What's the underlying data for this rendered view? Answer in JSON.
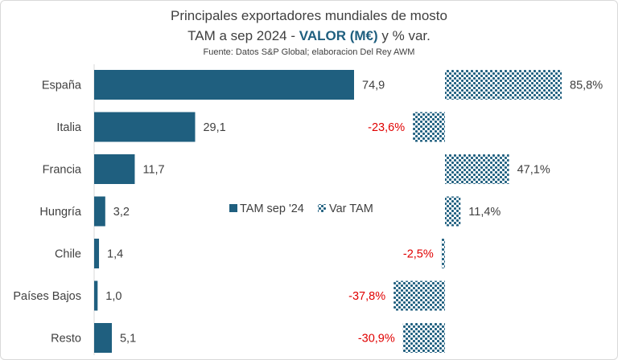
{
  "title": {
    "line1": "Principales exportadores mundiales de mosto",
    "line2_prefix": "TAM a sep 2024 - ",
    "line2_accent": "VALOR (M€)",
    "line2_suffix": " y % var.",
    "source": "Fuente: Datos S&P Global; elaboracion Del Rey AWM"
  },
  "colors": {
    "bar": "#1f5f7f",
    "accent": "#1f5f7f",
    "negative": "#e00000",
    "text": "#404040"
  },
  "chart_data": {
    "type": "bar",
    "orientation": "horizontal",
    "categories": [
      "España",
      "Italia",
      "Francia",
      "Hungría",
      "Chile",
      "Países Bajos",
      "Resto"
    ],
    "series": [
      {
        "name": "TAM sep '24",
        "values": [
          74.9,
          29.1,
          11.7,
          3.2,
          1.4,
          1.0,
          5.1
        ],
        "labels": [
          "74,9",
          "29,1",
          "11,7",
          "3,2",
          "1,4",
          "1,0",
          "5,1"
        ]
      },
      {
        "name": "Var TAM",
        "values": [
          85.8,
          -23.6,
          47.1,
          11.4,
          -2.5,
          -37.8,
          -30.9
        ],
        "labels": [
          "85,8%",
          "-23,6%",
          "47,1%",
          "11,4%",
          "-2,5%",
          "-37,8%",
          "-30,9%"
        ]
      }
    ],
    "legend": [
      "TAM sep '24",
      "Var TAM"
    ],
    "legend_position": "center",
    "grid": false
  }
}
